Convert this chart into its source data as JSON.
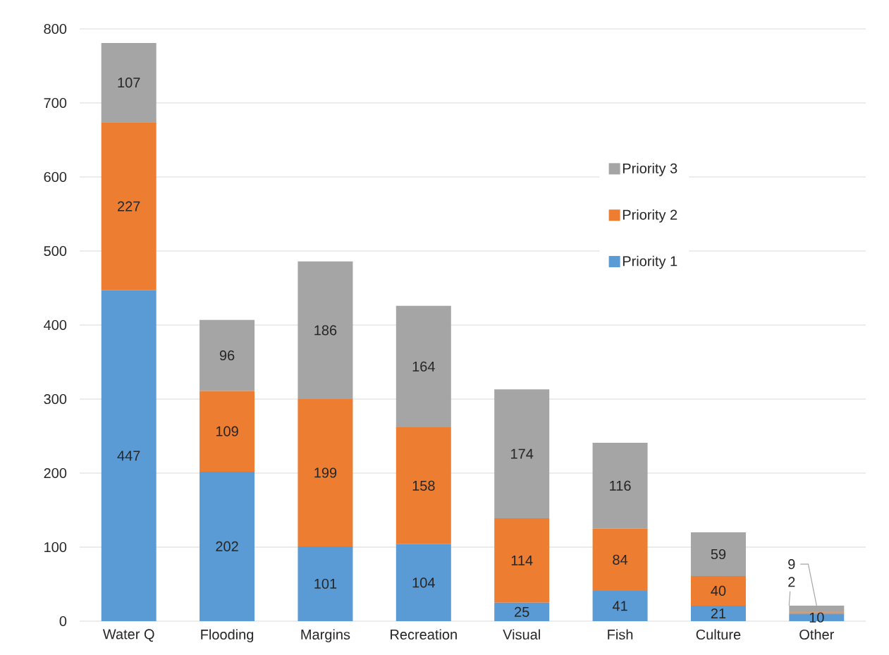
{
  "chart_data": {
    "type": "bar",
    "stacked": true,
    "categories": [
      "Water Q",
      "Flooding",
      "Margins",
      "Recreation",
      "Visual",
      "Fish",
      "Culture",
      "Other"
    ],
    "series": [
      {
        "name": "Priority 1",
        "color": "#5b9bd5",
        "values": [
          447,
          202,
          101,
          104,
          25,
          41,
          21,
          10
        ]
      },
      {
        "name": "Priority 2",
        "color": "#ed7d31",
        "values": [
          227,
          109,
          199,
          158,
          114,
          84,
          40,
          2
        ]
      },
      {
        "name": "Priority 3",
        "color": "#a5a5a5",
        "values": [
          107,
          96,
          186,
          164,
          174,
          116,
          59,
          9
        ]
      }
    ],
    "ylim": [
      0,
      800
    ],
    "yticks": [
      0,
      100,
      200,
      300,
      400,
      500,
      600,
      700,
      800
    ],
    "grid": "y",
    "legend": "top right",
    "data_labels": true
  }
}
